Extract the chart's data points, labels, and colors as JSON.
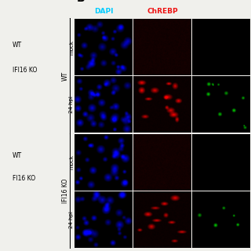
{
  "title_label": "B",
  "col_headers": [
    "DAPI",
    "ChREBP"
  ],
  "col_header_colors": [
    "#00ccff",
    "#ee1111"
  ],
  "row_group_labels": [
    "WT",
    "IFI16 KO"
  ],
  "row_sub_labels": [
    "mock",
    "24 hpi",
    "mock",
    "24 hpi"
  ],
  "legend_items": [
    {
      "label": "WT",
      "color": "#88cc00"
    },
    {
      "label": "IFI16 KO",
      "color": "#00cccc"
    }
  ],
  "background_color": "#f0f0ec",
  "cell_bg": "#000000",
  "n_rows": 4,
  "n_cols": 3
}
